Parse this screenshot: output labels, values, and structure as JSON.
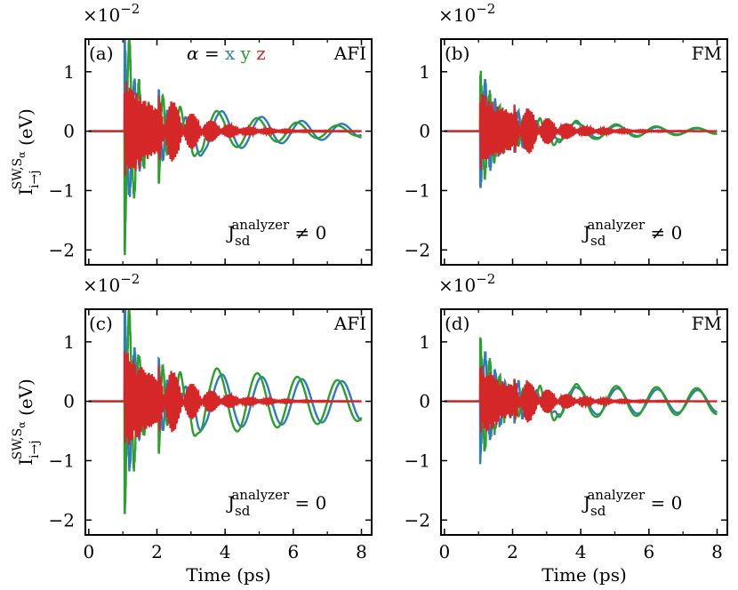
{
  "figure": {
    "series_colors": {
      "x": "#2f7bbd",
      "y": "#2ca02c",
      "z": "#d62728"
    },
    "alpha_legend": {
      "prefix": "α =",
      "x": "x",
      "y": "y",
      "z": "z"
    }
  },
  "chart_data": [
    {
      "type": "line",
      "panel_label": "(a)",
      "corner_label": "AFI",
      "annotation": {
        "main": "J",
        "sub": "sd",
        "sup": "analyzer",
        "rel": "≠ 0"
      },
      "multiplier": {
        "base": "×10",
        "exp": "−2"
      },
      "xlabel": "",
      "ylabel": {
        "main": "I",
        "sub": "i→j",
        "sup": "SW,S",
        "supsub": "α",
        "unit": "(eV)"
      },
      "xlim": [
        -0.1,
        8.3
      ],
      "ylim": [
        -2.25,
        1.55
      ],
      "xticks": [
        0,
        2,
        4,
        6,
        8
      ],
      "xtick_labels": [
        "",
        "",
        "",
        "",
        ""
      ],
      "yticks": [
        -2,
        -1,
        0,
        1
      ],
      "ytick_labels": [
        "−2",
        "−1",
        "0",
        "1"
      ],
      "series": [
        {
          "key": "x",
          "t_start": 1.05,
          "amp": 1.55,
          "decay": 0.45,
          "freq": 1.55,
          "tail_amp": 0.48,
          "tail_decay": 0.28,
          "tail_start": 2.6
        },
        {
          "key": "y",
          "t_start": 1.05,
          "amp": -2.05,
          "decay": 0.45,
          "freq": 1.6,
          "tail_amp": 0.55,
          "tail_decay": 0.35,
          "tail_start": 2.3
        },
        {
          "key": "z",
          "t_start": 1.05,
          "amp": 0.75,
          "decay": 1.3,
          "freq": 9.0,
          "tail_amp": 0.0,
          "tail_decay": 1,
          "tail_start": 3.0
        }
      ]
    },
    {
      "type": "line",
      "panel_label": "(b)",
      "corner_label": "FM",
      "annotation": {
        "main": "J",
        "sub": "sd",
        "sup": "analyzer",
        "rel": "≠ 0"
      },
      "multiplier": {
        "base": "×10",
        "exp": "−2"
      },
      "xlabel": "",
      "ylabel": null,
      "xlim": [
        -0.1,
        8.3
      ],
      "ylim": [
        -2.25,
        1.55
      ],
      "xticks": [
        0,
        2,
        4,
        6,
        8
      ],
      "xtick_labels": [
        "",
        "",
        "",
        "",
        ""
      ],
      "yticks": [
        -2,
        -1,
        0,
        1
      ],
      "ytick_labels": [
        "−2",
        "−1",
        "0",
        "1"
      ],
      "series": [
        {
          "key": "x",
          "t_start": 1.05,
          "amp": -0.95,
          "decay": 0.6,
          "freq": 1.55,
          "tail_amp": 0.2,
          "tail_decay": 0.3,
          "tail_start": 2.6
        },
        {
          "key": "y",
          "t_start": 1.05,
          "amp": 0.97,
          "decay": 0.6,
          "freq": 1.6,
          "tail_amp": 0.25,
          "tail_decay": 0.3,
          "tail_start": 2.4
        },
        {
          "key": "z",
          "t_start": 1.05,
          "amp": 0.55,
          "decay": 1.3,
          "freq": 9.0,
          "tail_amp": 0.0,
          "tail_decay": 1,
          "tail_start": 3.0
        }
      ]
    },
    {
      "type": "line",
      "panel_label": "(c)",
      "corner_label": "AFI",
      "annotation": {
        "main": "J",
        "sub": "sd",
        "sup": "analyzer",
        "rel": "= 0"
      },
      "multiplier": {
        "base": "×10",
        "exp": "−2"
      },
      "xlabel": "Time (ps)",
      "ylabel": {
        "main": "I",
        "sub": "i→j",
        "sup": "SW,S",
        "supsub": "α",
        "unit": "(eV)"
      },
      "xlim": [
        -0.1,
        8.3
      ],
      "ylim": [
        -2.25,
        1.55
      ],
      "xticks": [
        0,
        2,
        4,
        6,
        8
      ],
      "xtick_labels": [
        "0",
        "2",
        "4",
        "6",
        "8"
      ],
      "yticks": [
        -2,
        -1,
        0,
        1
      ],
      "ytick_labels": [
        "−2",
        "−1",
        "0",
        "1"
      ],
      "series": [
        {
          "key": "x",
          "t_start": 1.05,
          "amp": 1.55,
          "decay": 0.45,
          "freq": 1.55,
          "tail_amp": 0.5,
          "tail_decay": 0.08,
          "tail_start": 2.6
        },
        {
          "key": "y",
          "t_start": 1.05,
          "amp": -2.05,
          "decay": 0.45,
          "freq": 1.6,
          "tail_amp": 0.65,
          "tail_decay": 0.12,
          "tail_start": 2.3
        },
        {
          "key": "z",
          "t_start": 1.05,
          "amp": 0.75,
          "decay": 1.3,
          "freq": 9.0,
          "tail_amp": 0.0,
          "tail_decay": 1,
          "tail_start": 3.0
        }
      ]
    },
    {
      "type": "line",
      "panel_label": "(d)",
      "corner_label": "FM",
      "annotation": {
        "main": "J",
        "sub": "sd",
        "sup": "analyzer",
        "rel": "= 0"
      },
      "multiplier": {
        "base": "×10",
        "exp": "−2"
      },
      "xlabel": "Time (ps)",
      "ylabel": null,
      "xlim": [
        -0.1,
        8.3
      ],
      "ylim": [
        -2.25,
        1.55
      ],
      "xticks": [
        0,
        2,
        4,
        6,
        8
      ],
      "xtick_labels": [
        "0",
        "2",
        "4",
        "6",
        "8"
      ],
      "yticks": [
        -2,
        -1,
        0,
        1
      ],
      "ytick_labels": [
        "−2",
        "−1",
        "0",
        "1"
      ],
      "series": [
        {
          "key": "x",
          "t_start": 1.05,
          "amp": -1.0,
          "decay": 0.6,
          "freq": 1.55,
          "tail_amp": 0.25,
          "tail_decay": 0.06,
          "tail_start": 2.6
        },
        {
          "key": "y",
          "t_start": 1.05,
          "amp": 1.0,
          "decay": 0.6,
          "freq": 1.6,
          "tail_amp": 0.3,
          "tail_decay": 0.06,
          "tail_start": 2.4
        },
        {
          "key": "z",
          "t_start": 1.05,
          "amp": 0.5,
          "decay": 1.3,
          "freq": 9.0,
          "tail_amp": 0.0,
          "tail_decay": 1,
          "tail_start": 3.0
        }
      ]
    }
  ]
}
